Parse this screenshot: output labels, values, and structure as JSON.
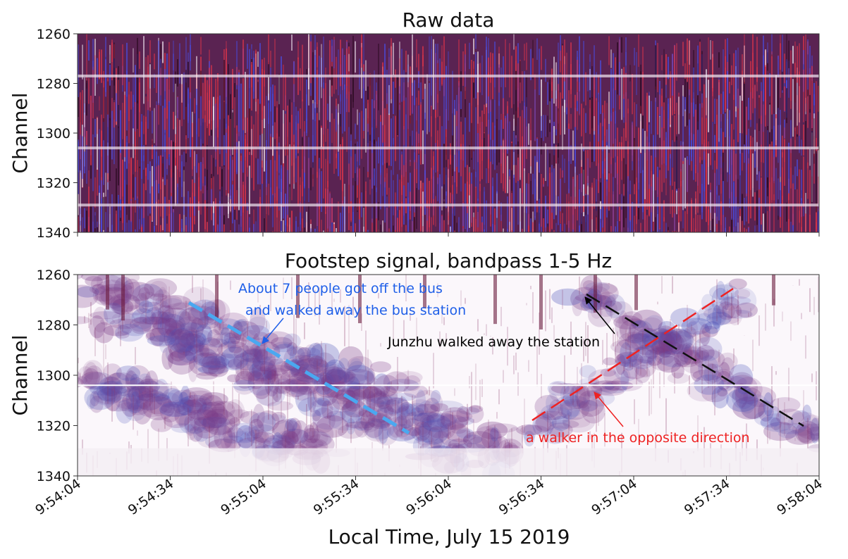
{
  "chart_data": [
    {
      "type": "heatmap",
      "title": "Raw data",
      "ylabel": "Channel",
      "ylim": [
        1340,
        1260
      ],
      "yticks": [
        1260,
        1280,
        1300,
        1320,
        1340
      ]
    },
    {
      "type": "heatmap",
      "title": "Footstep signal, bandpass 1-5 Hz",
      "ylabel": "Channel",
      "xlabel": "Local Time, July 15 2019",
      "ylim": [
        1340,
        1260
      ],
      "yticks": [
        1260,
        1280,
        1300,
        1320,
        1340
      ],
      "xlim": [
        "9:54:04",
        "9:58:04"
      ],
      "xticks": [
        "9:54:04",
        "9:54:34",
        "9:55:04",
        "9:55:34",
        "9:56:04",
        "9:56:34",
        "9:57:04",
        "9:57:34",
        "9:58:04"
      ],
      "annotations": [
        {
          "lines": [
            "About 7 people got off the bus",
            "and walked away the bus station"
          ],
          "color": "#1f5fe8"
        },
        {
          "lines": [
            "Junzhu walked away the station"
          ],
          "color": "#000000"
        },
        {
          "lines": [
            "a walker in the opposite direction"
          ],
          "color": "#ee2222"
        }
      ]
    }
  ]
}
